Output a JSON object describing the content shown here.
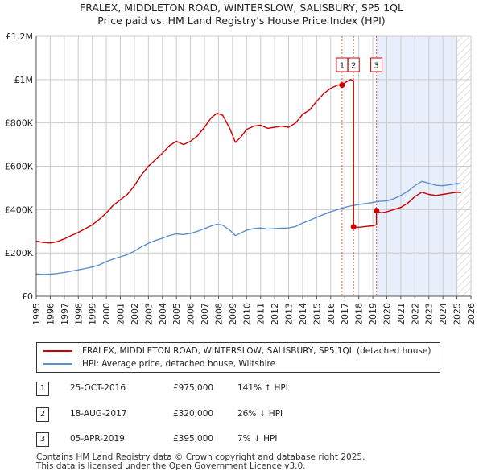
{
  "header": {
    "title_line1": "FRALEX, MIDDLETON ROAD, WINTERSLOW, SALISBURY, SP5 1QL",
    "title_line2": "Price paid vs. HM Land Registry's House Price Index (HPI)"
  },
  "chart_data": {
    "type": "line",
    "x_range": [
      1995,
      2026
    ],
    "ylim": [
      0,
      1200000
    ],
    "y_ticks": [
      {
        "value": 0,
        "label": "£0"
      },
      {
        "value": 200000,
        "label": "£200K"
      },
      {
        "value": 400000,
        "label": "£400K"
      },
      {
        "value": 600000,
        "label": "£600K"
      },
      {
        "value": 800000,
        "label": "£800K"
      },
      {
        "value": 1000000,
        "label": "£1M"
      },
      {
        "value": 1200000,
        "label": "£1.2M"
      }
    ],
    "x_ticks": [
      "1995",
      "1996",
      "1997",
      "1998",
      "1999",
      "2000",
      "2001",
      "2002",
      "2003",
      "2004",
      "2005",
      "2006",
      "2007",
      "2008",
      "2009",
      "2010",
      "2011",
      "2012",
      "2013",
      "2014",
      "2015",
      "2016",
      "2017",
      "2018",
      "2019",
      "2020",
      "2021",
      "2022",
      "2023",
      "2024",
      "2025",
      "2026"
    ],
    "colors": {
      "property": "#cc0000",
      "hpi": "#5b8fd0",
      "shade": "#e8eefa",
      "grid": "#cccccc",
      "vline": "#dd5555"
    },
    "shaded_region": [
      2019.26,
      2025.0
    ],
    "hatched_from": 2025.0,
    "series": [
      {
        "name": "FRALEX, MIDDLETON ROAD, WINTERSLOW, SALISBURY, SP5 1QL (detached house)",
        "color": "#cc0000",
        "points": [
          [
            1995.0,
            255000
          ],
          [
            1995.5,
            248000
          ],
          [
            1996.0,
            246000
          ],
          [
            1996.5,
            252000
          ],
          [
            1997.0,
            265000
          ],
          [
            1997.5,
            280000
          ],
          [
            1998.0,
            295000
          ],
          [
            1998.5,
            312000
          ],
          [
            1999.0,
            330000
          ],
          [
            1999.5,
            355000
          ],
          [
            2000.0,
            385000
          ],
          [
            2000.5,
            420000
          ],
          [
            2001.0,
            445000
          ],
          [
            2001.5,
            470000
          ],
          [
            2002.0,
            510000
          ],
          [
            2002.5,
            560000
          ],
          [
            2003.0,
            600000
          ],
          [
            2003.5,
            630000
          ],
          [
            2004.0,
            660000
          ],
          [
            2004.5,
            695000
          ],
          [
            2005.0,
            715000
          ],
          [
            2005.5,
            700000
          ],
          [
            2006.0,
            715000
          ],
          [
            2006.5,
            740000
          ],
          [
            2007.0,
            780000
          ],
          [
            2007.5,
            825000
          ],
          [
            2007.9,
            845000
          ],
          [
            2008.3,
            835000
          ],
          [
            2008.8,
            775000
          ],
          [
            2009.2,
            710000
          ],
          [
            2009.6,
            735000
          ],
          [
            2010.0,
            770000
          ],
          [
            2010.5,
            785000
          ],
          [
            2011.0,
            790000
          ],
          [
            2011.5,
            775000
          ],
          [
            2012.0,
            780000
          ],
          [
            2012.5,
            785000
          ],
          [
            2013.0,
            780000
          ],
          [
            2013.5,
            800000
          ],
          [
            2014.0,
            840000
          ],
          [
            2014.5,
            860000
          ],
          [
            2015.0,
            900000
          ],
          [
            2015.5,
            935000
          ],
          [
            2016.0,
            960000
          ],
          [
            2016.5,
            975000
          ],
          [
            2016.81,
            975000
          ],
          [
            2017.0,
            985000
          ],
          [
            2017.4,
            1000000
          ],
          [
            2017.63,
            995000
          ],
          [
            2017.63,
            320000
          ],
          [
            2018.0,
            318000
          ],
          [
            2018.5,
            322000
          ],
          [
            2019.0,
            325000
          ],
          [
            2019.26,
            330000
          ],
          [
            2019.26,
            395000
          ],
          [
            2019.6,
            385000
          ],
          [
            2020.0,
            390000
          ],
          [
            2020.5,
            400000
          ],
          [
            2021.0,
            410000
          ],
          [
            2021.5,
            430000
          ],
          [
            2022.0,
            460000
          ],
          [
            2022.5,
            480000
          ],
          [
            2023.0,
            470000
          ],
          [
            2023.5,
            465000
          ],
          [
            2024.0,
            470000
          ],
          [
            2024.5,
            475000
          ],
          [
            2025.0,
            480000
          ],
          [
            2025.3,
            478000
          ]
        ]
      },
      {
        "name": "HPI: Average price, detached house, Wiltshire",
        "color": "#5b8fd0",
        "points": [
          [
            1995.0,
            103000
          ],
          [
            1995.5,
            101000
          ],
          [
            1996.0,
            102000
          ],
          [
            1996.5,
            105000
          ],
          [
            1997.0,
            110000
          ],
          [
            1997.5,
            116000
          ],
          [
            1998.0,
            122000
          ],
          [
            1998.5,
            128000
          ],
          [
            1999.0,
            135000
          ],
          [
            1999.5,
            145000
          ],
          [
            2000.0,
            160000
          ],
          [
            2000.5,
            172000
          ],
          [
            2001.0,
            182000
          ],
          [
            2001.5,
            192000
          ],
          [
            2002.0,
            208000
          ],
          [
            2002.5,
            228000
          ],
          [
            2003.0,
            245000
          ],
          [
            2003.5,
            258000
          ],
          [
            2004.0,
            268000
          ],
          [
            2004.5,
            280000
          ],
          [
            2005.0,
            288000
          ],
          [
            2005.5,
            285000
          ],
          [
            2006.0,
            290000
          ],
          [
            2006.5,
            300000
          ],
          [
            2007.0,
            312000
          ],
          [
            2007.5,
            325000
          ],
          [
            2007.9,
            332000
          ],
          [
            2008.3,
            328000
          ],
          [
            2008.8,
            305000
          ],
          [
            2009.2,
            280000
          ],
          [
            2009.6,
            292000
          ],
          [
            2010.0,
            305000
          ],
          [
            2010.5,
            312000
          ],
          [
            2011.0,
            315000
          ],
          [
            2011.5,
            310000
          ],
          [
            2012.0,
            312000
          ],
          [
            2012.5,
            314000
          ],
          [
            2013.0,
            315000
          ],
          [
            2013.5,
            322000
          ],
          [
            2014.0,
            338000
          ],
          [
            2014.5,
            350000
          ],
          [
            2015.0,
            365000
          ],
          [
            2015.5,
            378000
          ],
          [
            2016.0,
            390000
          ],
          [
            2016.5,
            400000
          ],
          [
            2017.0,
            410000
          ],
          [
            2017.5,
            418000
          ],
          [
            2018.0,
            423000
          ],
          [
            2018.5,
            428000
          ],
          [
            2019.0,
            433000
          ],
          [
            2019.5,
            438000
          ],
          [
            2020.0,
            440000
          ],
          [
            2020.5,
            450000
          ],
          [
            2021.0,
            465000
          ],
          [
            2021.5,
            485000
          ],
          [
            2022.0,
            510000
          ],
          [
            2022.5,
            530000
          ],
          [
            2023.0,
            522000
          ],
          [
            2023.5,
            512000
          ],
          [
            2024.0,
            510000
          ],
          [
            2024.5,
            515000
          ],
          [
            2025.0,
            520000
          ],
          [
            2025.3,
            518000
          ]
        ]
      }
    ],
    "sales": [
      {
        "label": "1",
        "x": 2016.81,
        "y": 975000
      },
      {
        "label": "2",
        "x": 2017.63,
        "y": 320000
      },
      {
        "label": "3",
        "x": 2019.26,
        "y": 395000
      }
    ]
  },
  "legend": {
    "property_label": "FRALEX, MIDDLETON ROAD, WINTERSLOW, SALISBURY, SP5 1QL (detached house)",
    "hpi_label": "HPI: Average price, detached house, Wiltshire"
  },
  "transactions": [
    {
      "num": "1",
      "date": "25-OCT-2016",
      "price": "£975,000",
      "hpi": "141% ↑ HPI"
    },
    {
      "num": "2",
      "date": "18-AUG-2017",
      "price": "£320,000",
      "hpi": "26% ↓ HPI"
    },
    {
      "num": "3",
      "date": "05-APR-2019",
      "price": "£395,000",
      "hpi": "7% ↓ HPI"
    }
  ],
  "footer": {
    "line1": "Contains HM Land Registry data © Crown copyright and database right 2025.",
    "line2": "This data is licensed under the Open Government Licence v3.0."
  }
}
